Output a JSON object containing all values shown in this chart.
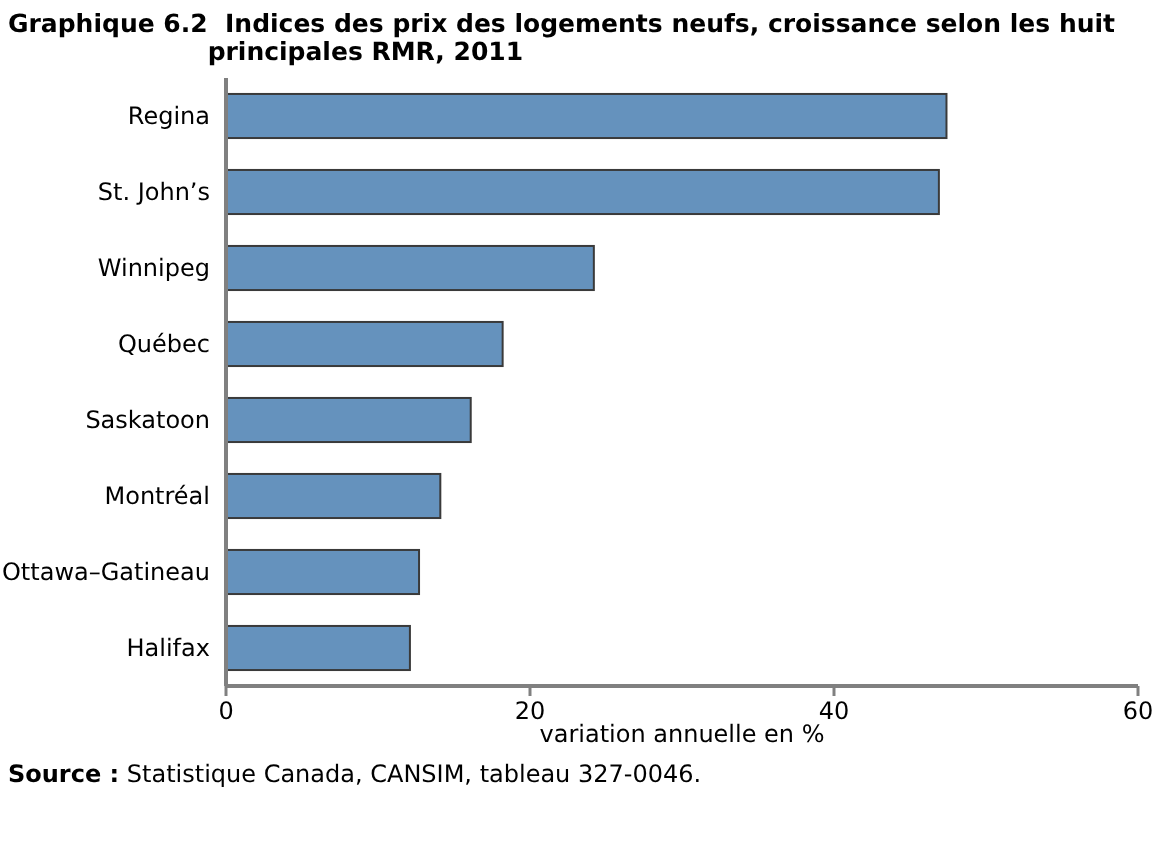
{
  "chart_data": {
    "type": "bar",
    "orientation": "horizontal",
    "title": "Graphique 6.2  Indices des prix des logements neufs, croissance selon les huit principales RMR, 2011",
    "categories": [
      "Regina",
      "St. John’s",
      "Winnipeg",
      "Québec",
      "Saskatoon",
      "Montréal",
      "Ottawa–Gatineau",
      "Halifax"
    ],
    "values": [
      47.4,
      46.9,
      24.2,
      18.2,
      16.1,
      14.1,
      12.7,
      12.1
    ],
    "color": "#6592bd",
    "xlim": [
      0,
      60
    ],
    "xticks": [
      0,
      20,
      40,
      60
    ],
    "xlabel": "variation annuelle en %",
    "grid": false,
    "annotations": [
      "Source : Statistique Canada, CANSIM, tableau 327-0046."
    ]
  }
}
